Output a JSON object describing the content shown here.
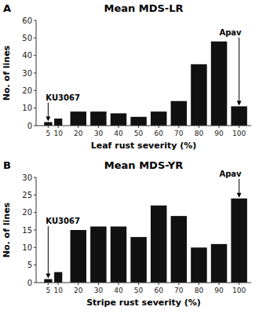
{
  "chart_data": [
    {
      "type": "bar",
      "panel_label": "A",
      "title": "Mean MDS-LR",
      "x_label": "Leaf rust severity (%)",
      "y_label": "No. of lines",
      "x": [
        5,
        10,
        20,
        30,
        40,
        50,
        60,
        70,
        80,
        90,
        100
      ],
      "values": [
        2,
        4,
        8,
        8,
        7,
        5,
        8,
        14,
        35,
        48,
        11
      ],
      "color": "#111111",
      "xlim": [
        -1,
        106
      ],
      "xticks": [
        5,
        10,
        20,
        30,
        40,
        50,
        60,
        70,
        80,
        90,
        100
      ],
      "ylim": [
        0,
        60
      ],
      "yticks": [
        0,
        10,
        20,
        30,
        40,
        50,
        60
      ],
      "grid": false,
      "annotations": [
        {
          "text": "KU3067",
          "x": 5,
          "y": 2
        },
        {
          "text": "Apav",
          "x": 100,
          "y": 11
        }
      ]
    },
    {
      "type": "bar",
      "panel_label": "B",
      "title": "Mean MDS-YR",
      "x_label": "Stripe rust severity (%)",
      "y_label": "No. of lines",
      "x": [
        5,
        10,
        20,
        30,
        40,
        50,
        60,
        70,
        80,
        90,
        100
      ],
      "values": [
        1,
        3,
        15,
        16,
        16,
        13,
        22,
        19,
        10,
        11,
        24
      ],
      "color": "#111111",
      "xlim": [
        -1,
        106
      ],
      "xticks": [
        5,
        10,
        20,
        30,
        40,
        50,
        60,
        70,
        80,
        90,
        100
      ],
      "ylim": [
        0,
        30
      ],
      "yticks": [
        0,
        5,
        10,
        15,
        20,
        25,
        30
      ],
      "grid": false,
      "annotations": [
        {
          "text": "KU3067",
          "x": 5,
          "y": 1
        },
        {
          "text": "Apav",
          "x": 100,
          "y": 24
        }
      ]
    }
  ]
}
